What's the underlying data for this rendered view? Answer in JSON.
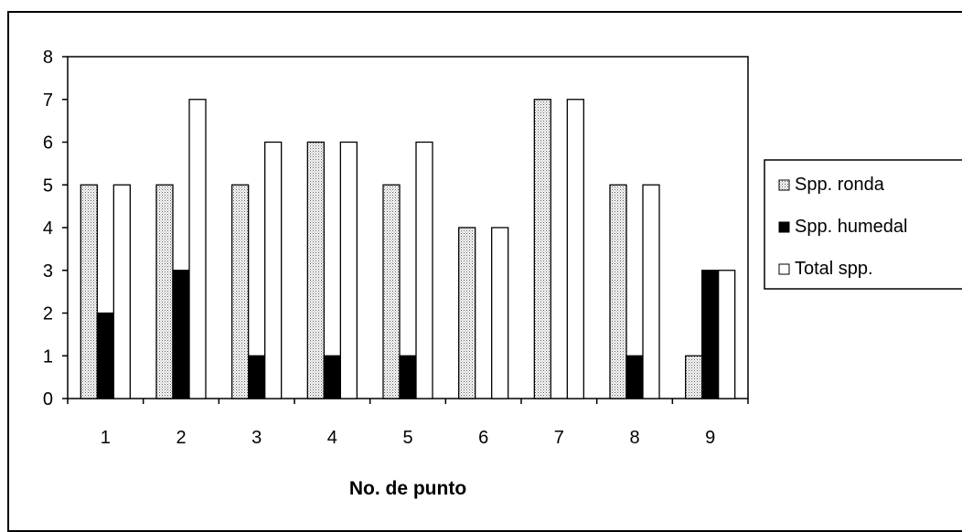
{
  "chart_data": {
    "type": "bar",
    "categories": [
      "1",
      "2",
      "3",
      "4",
      "5",
      "6",
      "7",
      "8",
      "9"
    ],
    "series": [
      {
        "name": "Spp. ronda",
        "values": [
          5,
          5,
          5,
          6,
          5,
          4,
          7,
          5,
          1
        ],
        "pattern": "dotted"
      },
      {
        "name": "Spp. humedal",
        "values": [
          2,
          3,
          1,
          1,
          1,
          0,
          0,
          1,
          3
        ],
        "color": "#000000"
      },
      {
        "name": "Total spp.",
        "values": [
          5,
          7,
          6,
          6,
          6,
          4,
          7,
          5,
          3
        ],
        "color": "#ffffff"
      }
    ],
    "xlabel": "No. de punto",
    "ylabel": "",
    "ylim": [
      0,
      8
    ],
    "yticks": [
      0,
      1,
      2,
      3,
      4,
      5,
      6,
      7,
      8
    ],
    "grid": false,
    "legend_position": "right"
  }
}
